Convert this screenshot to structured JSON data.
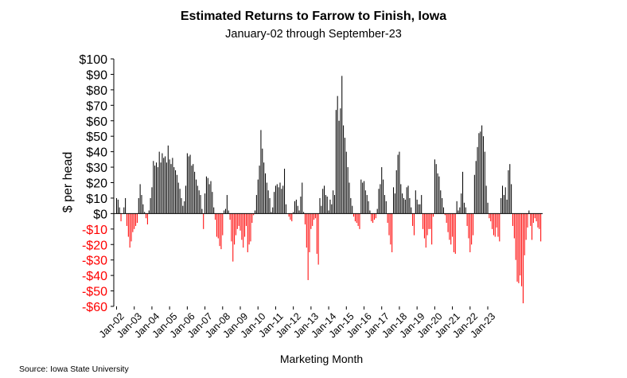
{
  "source": "Source: Iowa State University",
  "chart_data": {
    "type": "bar",
    "title": "Estimated Returns to Farrow to Finish, Iowa",
    "subtitle": "January-02 through September-23",
    "xlabel": "Marketing Month",
    "ylabel": "$ per head",
    "ylim": [
      -60,
      100
    ],
    "y_ticks": [
      100,
      90,
      80,
      70,
      60,
      50,
      40,
      30,
      20,
      10,
      0,
      -10,
      -20,
      -30,
      -40,
      -50,
      -60
    ],
    "y_tick_labels": [
      "$100",
      "$90",
      "$80",
      "$70",
      "$60",
      "$50",
      "$40",
      "$30",
      "$20",
      "$10",
      "$0",
      "-$10",
      "-$20",
      "-$30",
      "-$40",
      "-$50",
      "-$60"
    ],
    "x_tick_labels": [
      "Jan-02",
      "Jan-03",
      "Jan-04",
      "Jan-05",
      "Jan-06",
      "Jan-07",
      "Jan-08",
      "Jan-09",
      "Jan-10",
      "Jan-11",
      "Jan-12",
      "Jan-13",
      "Jan-14",
      "Jan-15",
      "Jan-16",
      "Jan-17",
      "Jan-18",
      "Jan-19",
      "Jan-20",
      "Jan-21",
      "Jan-22",
      "Jan-23"
    ],
    "start_month": "Jan-02",
    "grid": false,
    "colors": {
      "positive": "#000000",
      "negative": "#ff0000",
      "negative_tick_labels": "#ff0000"
    },
    "values": [
      10,
      9,
      4,
      -5,
      0,
      4,
      10,
      -8,
      -15,
      -22,
      -18,
      -12,
      -10,
      -8,
      -6,
      10,
      19,
      12,
      6,
      1,
      -3,
      -7,
      2,
      10,
      17,
      34,
      31,
      33,
      30,
      40,
      33,
      39,
      36,
      37,
      33,
      44,
      35,
      32,
      36,
      30,
      28,
      25,
      20,
      16,
      10,
      5,
      8,
      18,
      39,
      37,
      38,
      31,
      32,
      27,
      22,
      18,
      15,
      12,
      3,
      -10,
      13,
      24,
      23,
      19,
      21,
      14,
      4,
      -4,
      -15,
      -16,
      -21,
      -23,
      -14,
      2,
      3,
      12,
      2,
      -4,
      -18,
      -31,
      -20,
      -14,
      -10,
      -8,
      -11,
      -17,
      -22,
      -15,
      -8,
      -25,
      -20,
      -18,
      -6,
      -1,
      2,
      12,
      22,
      31,
      54,
      42,
      33,
      26,
      20,
      15,
      10,
      1,
      4,
      14,
      18,
      19,
      17,
      20,
      16,
      18,
      29,
      6,
      0,
      -2,
      -4,
      -5,
      1,
      8,
      9,
      5,
      2,
      11,
      20,
      1,
      -7,
      -22,
      -43,
      -25,
      -10,
      -8,
      -4,
      -3,
      -26,
      -33,
      10,
      5,
      16,
      18,
      12,
      11,
      2,
      9,
      6,
      15,
      12,
      67,
      76,
      60,
      68,
      89,
      57,
      49,
      40,
      30,
      20,
      10,
      5,
      -2,
      -5,
      -6,
      -8,
      -10,
      22,
      20,
      21,
      15,
      12,
      8,
      2,
      -5,
      -6,
      -4,
      -3,
      3,
      16,
      19,
      30,
      22,
      12,
      8,
      -6,
      -14,
      -20,
      -25,
      17,
      13,
      28,
      38,
      40,
      19,
      13,
      10,
      9,
      17,
      18,
      10,
      4,
      -8,
      -14,
      15,
      9,
      6,
      6,
      12,
      -10,
      -16,
      -22,
      -14,
      -10,
      -10,
      -20,
      -2,
      35,
      32,
      26,
      24,
      15,
      10,
      4,
      -1,
      -6,
      -12,
      -17,
      -20,
      -15,
      -25,
      -26,
      8,
      2,
      4,
      13,
      27,
      7,
      4,
      -8,
      -16,
      -25,
      -20,
      -14,
      25,
      34,
      43,
      52,
      53,
      57,
      50,
      40,
      18,
      7,
      -3,
      -5,
      -10,
      -14,
      -15,
      -9,
      -15,
      -18,
      10,
      18,
      12,
      17,
      9,
      28,
      32,
      19,
      -8,
      -16,
      -30,
      -44,
      -45,
      -40,
      -47,
      -58,
      -27,
      -17,
      -9,
      2,
      -8,
      -17,
      -6,
      -3,
      -5,
      -9,
      -10,
      -18
    ]
  }
}
